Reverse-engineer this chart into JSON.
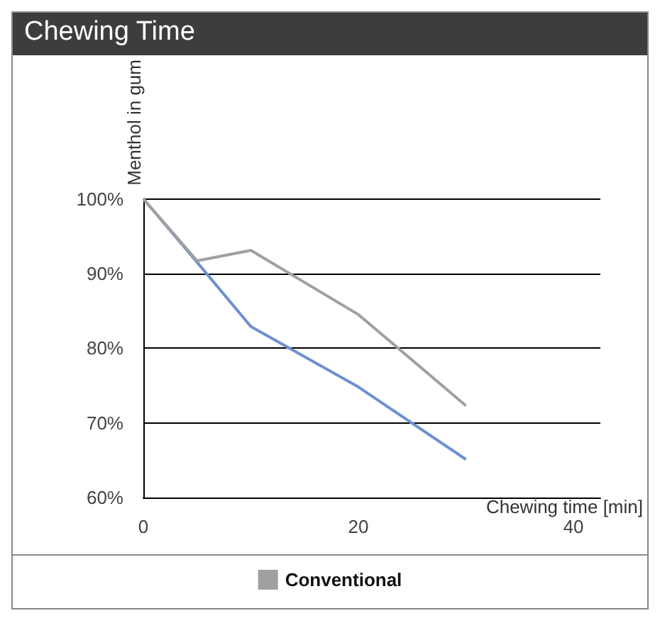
{
  "chart_data": {
    "type": "line",
    "title": "Chewing Time",
    "xlabel": "Chewing time [min]",
    "ylabel": "Menthol in gum",
    "x": [
      0,
      5,
      10,
      20,
      30
    ],
    "series": [
      {
        "color": "#6f8fd0",
        "values": [
          100,
          91.5,
          82.9,
          74.8,
          65.1
        ]
      },
      {
        "name": "Conventional",
        "color": "#a0a0a0",
        "values": [
          100,
          91.7,
          93.1,
          84.5,
          72.3
        ]
      }
    ],
    "xlim": [
      0,
      42.5
    ],
    "xticks": [
      0,
      20,
      40
    ],
    "ylim": [
      60,
      100
    ],
    "yticks": [
      {
        "value": 60,
        "label": "60%"
      },
      {
        "value": 70,
        "label": "70%"
      },
      {
        "value": 80,
        "label": "80%"
      },
      {
        "value": 90,
        "label": "90%"
      },
      {
        "value": 100,
        "label": "100%"
      }
    ],
    "grid": "y",
    "legend": "bottom",
    "marker": "none",
    "line_style": "solid"
  }
}
